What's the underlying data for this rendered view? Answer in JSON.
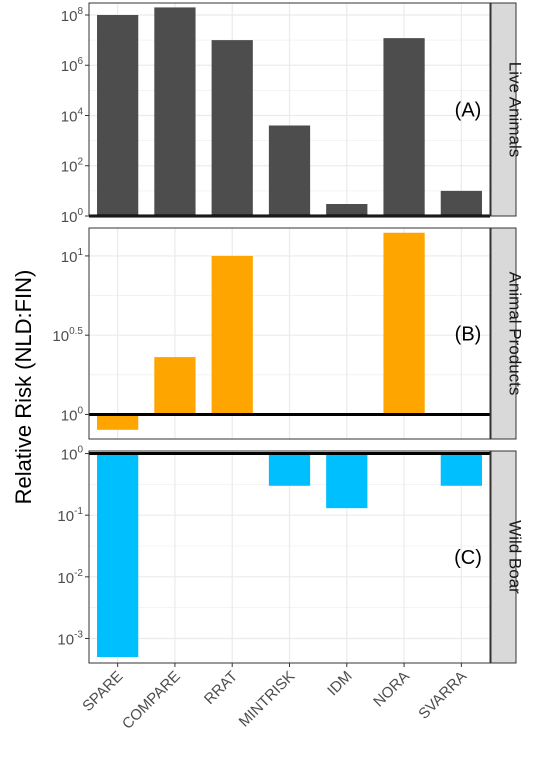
{
  "chart_data": {
    "type": "bar",
    "ylabel": "Relative Risk (NLD:FIN)",
    "yscale": "log10",
    "baseline": 1,
    "categories": [
      "SPARE",
      "COMPARE",
      "RRAT",
      "MINTRISK",
      "IDM",
      "NORA",
      "SVARRA"
    ],
    "panels": [
      {
        "strip": "Live Animals",
        "label": "(A)",
        "color": "#4d4d4d",
        "ylim": [
          1,
          300000000
        ],
        "yticks": [
          {
            "value": 1,
            "base": "10",
            "exp": "0"
          },
          {
            "value": 100,
            "base": "10",
            "exp": "2"
          },
          {
            "value": 10000,
            "base": "10",
            "exp": "4"
          },
          {
            "value": 1000000,
            "base": "10",
            "exp": "6"
          },
          {
            "value": 100000000,
            "base": "10",
            "exp": "8"
          }
        ],
        "values": [
          100000000,
          200000000,
          10000000,
          4000,
          3,
          12000000,
          10
        ]
      },
      {
        "strip": "Animal Products",
        "label": "(B)",
        "color": "#ffa500",
        "ylim": [
          0.7,
          15
        ],
        "yticks": [
          {
            "value": 1,
            "base": "10",
            "exp": "0"
          },
          {
            "value": 3.162,
            "base": "10",
            "exp": "0.5"
          },
          {
            "value": 10,
            "base": "10",
            "exp": "1"
          }
        ],
        "values": [
          0.8,
          2.3,
          10,
          null,
          null,
          14,
          null
        ]
      },
      {
        "strip": "Wild Boar",
        "label": "(C)",
        "color": "#00bfff",
        "ylim": [
          0.0004,
          1.1
        ],
        "yticks": [
          {
            "value": 1,
            "base": "10",
            "exp": "0"
          },
          {
            "value": 0.1,
            "base": "10",
            "exp": "-1"
          },
          {
            "value": 0.01,
            "base": "10",
            "exp": "-2"
          },
          {
            "value": 0.001,
            "base": "10",
            "exp": "-3"
          }
        ],
        "values": [
          0.0005,
          null,
          null,
          0.3,
          0.13,
          null,
          0.3
        ]
      }
    ]
  }
}
